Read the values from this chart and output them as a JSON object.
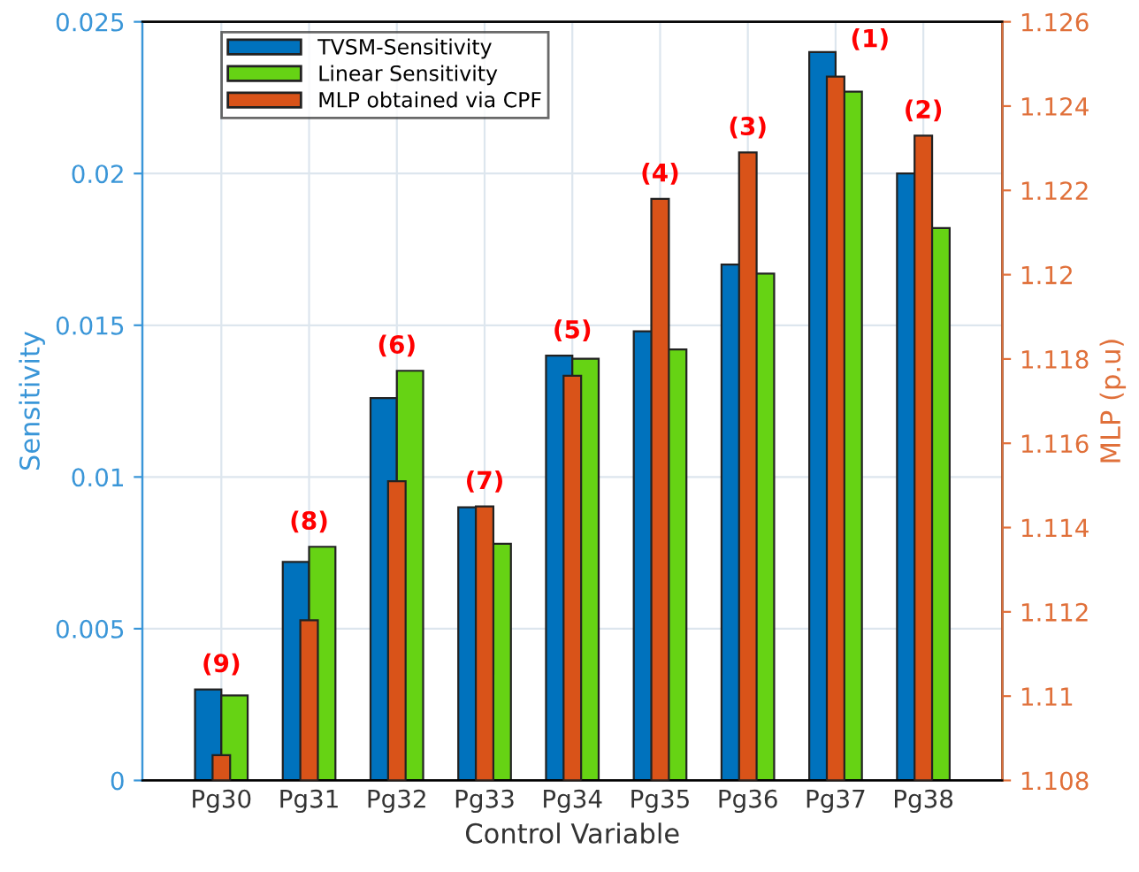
{
  "chart_data": {
    "type": "bar",
    "xlabel": "Control Variable",
    "ylabel": "Sensitivity",
    "y2label": "MLP (p.u)",
    "categories": [
      "Pg30",
      "Pg31",
      "Pg32",
      "Pg33",
      "Pg34",
      "Pg35",
      "Pg36",
      "Pg37",
      "Pg38"
    ],
    "series": [
      {
        "name": "TVSM-Sensitivity",
        "color": "#0072bd",
        "values": [
          0.003,
          0.0072,
          0.0126,
          0.009,
          0.014,
          0.0148,
          0.017,
          0.024,
          0.02
        ]
      },
      {
        "name": "Linear Sensitivity",
        "color": "#66d314",
        "values": [
          0.0028,
          0.0077,
          0.0135,
          0.0078,
          0.0139,
          0.0142,
          0.0167,
          0.0227,
          0.0182
        ]
      },
      {
        "name": "MLP obtained via CPF",
        "color": "#d95319",
        "axis": "y2",
        "values": [
          1.1086,
          1.1118,
          1.1151,
          1.1145,
          1.1176,
          1.1218,
          1.1229,
          1.1247,
          1.1233
        ]
      }
    ],
    "ylim": [
      0,
      0.025
    ],
    "yticks": [
      0,
      0.005,
      0.01,
      0.015,
      0.02,
      0.025
    ],
    "y2lim": [
      1.108,
      1.126
    ],
    "y2ticks": [
      1.108,
      1.11,
      1.112,
      1.114,
      1.116,
      1.118,
      1.12,
      1.122,
      1.124,
      1.126
    ],
    "annotations": [
      "(9)",
      "(8)",
      "(6)",
      "(7)",
      "(5)",
      "(4)",
      "(3)",
      "(1)",
      "(2)"
    ],
    "grid": true,
    "legend": "top left"
  }
}
